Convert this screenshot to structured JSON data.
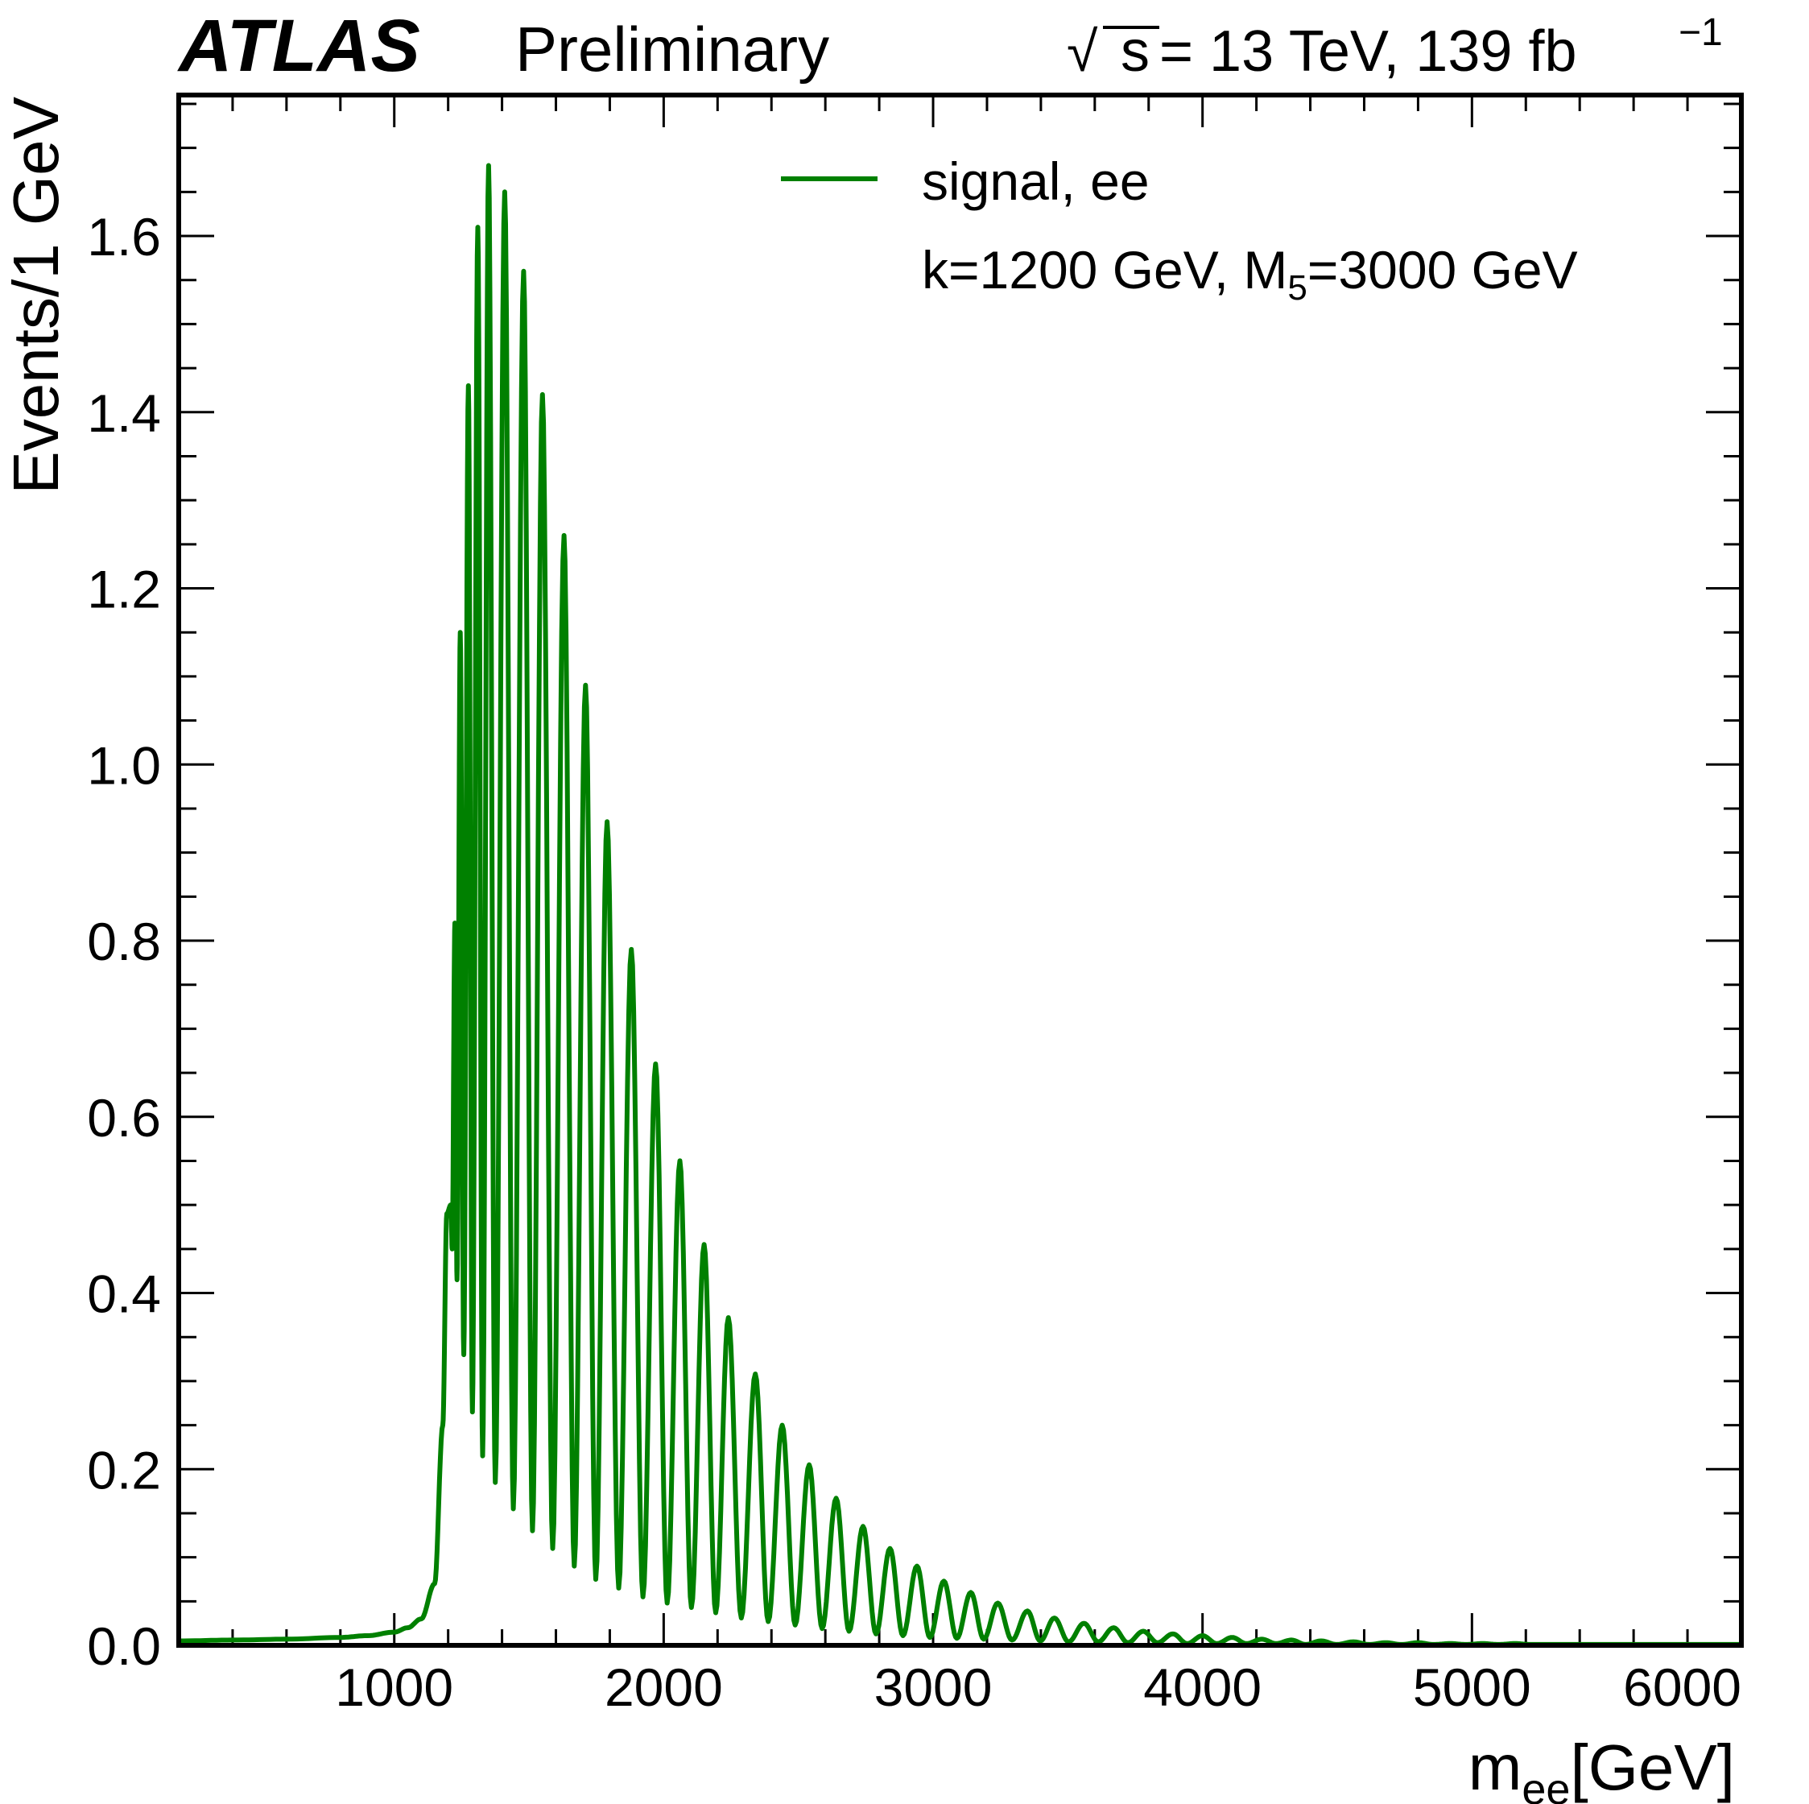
{
  "header": {
    "experiment": "ATLAS",
    "status": "Preliminary",
    "sqrt_symbol": "√",
    "energy_s": "s",
    "energy_rest": " = 13 TeV, 139 fb",
    "lumi_exponent": "−1"
  },
  "chart_data": {
    "type": "line",
    "xlabel_main": "m",
    "xlabel_sub": "ee",
    "xlabel_unit": "[GeV]",
    "ylabel": "Events/1 GeV",
    "xlim": [
      200,
      6000
    ],
    "ylim": [
      0,
      1.76
    ],
    "x_ticks": [
      1000,
      2000,
      3000,
      4000,
      5000,
      6000
    ],
    "x_tick_labels": [
      "1000",
      "2000",
      "3000",
      "4000",
      "5000",
      "6000"
    ],
    "y_ticks": [
      0.0,
      0.2,
      0.4,
      0.6,
      0.8,
      1.0,
      1.2,
      1.4,
      1.6
    ],
    "y_tick_labels": [
      "0.0",
      "0.2",
      "0.4",
      "0.6",
      "0.8",
      "1.0",
      "1.2",
      "1.4",
      "1.6"
    ],
    "legend": {
      "placement": "top-right",
      "entry": "signal, ee",
      "note_prefix": "k=1200 GeV, M",
      "note_sub": "5",
      "note_suffix": "=3000 GeV"
    },
    "series": [
      {
        "name": "signal, ee",
        "color": "#008000",
        "baseline": [
          [
            200,
            0.005
          ],
          [
            400,
            0.006
          ],
          [
            600,
            0.007
          ],
          [
            800,
            0.009
          ],
          [
            900,
            0.011
          ],
          [
            1000,
            0.015
          ],
          [
            1050,
            0.02
          ],
          [
            1100,
            0.03
          ],
          [
            1150,
            0.07
          ],
          [
            1180,
            0.25
          ],
          [
            1195,
            0.49
          ]
        ],
        "peaks": [
          [
            1210,
            0.5
          ],
          [
            1225,
            0.82
          ],
          [
            1245,
            1.15
          ],
          [
            1275,
            1.43
          ],
          [
            1310,
            1.61
          ],
          [
            1350,
            1.68
          ],
          [
            1410,
            1.65
          ],
          [
            1480,
            1.56
          ],
          [
            1550,
            1.42
          ],
          [
            1630,
            1.26
          ],
          [
            1710,
            1.09
          ],
          [
            1790,
            0.935
          ],
          [
            1880,
            0.79
          ],
          [
            1970,
            0.66
          ],
          [
            2060,
            0.55
          ],
          [
            2150,
            0.455
          ],
          [
            2240,
            0.372
          ],
          [
            2340,
            0.308
          ],
          [
            2440,
            0.25
          ],
          [
            2540,
            0.205
          ],
          [
            2640,
            0.167
          ],
          [
            2740,
            0.135
          ],
          [
            2840,
            0.11
          ],
          [
            2940,
            0.09
          ],
          [
            3040,
            0.073
          ],
          [
            3140,
            0.06
          ],
          [
            3240,
            0.048
          ],
          [
            3350,
            0.039
          ],
          [
            3450,
            0.031
          ],
          [
            3560,
            0.025
          ],
          [
            3670,
            0.02
          ],
          [
            3780,
            0.016
          ],
          [
            3890,
            0.013
          ],
          [
            4000,
            0.011
          ],
          [
            4110,
            0.009
          ],
          [
            4220,
            0.007
          ],
          [
            4330,
            0.006
          ],
          [
            4440,
            0.005
          ],
          [
            4560,
            0.004
          ],
          [
            4680,
            0.003
          ],
          [
            4800,
            0.003
          ],
          [
            4920,
            0.002
          ],
          [
            5040,
            0.002
          ],
          [
            5160,
            0.002
          ],
          [
            5280,
            0.001
          ],
          [
            5400,
            0.001
          ],
          [
            5520,
            0.001
          ],
          [
            5640,
            0.001
          ],
          [
            5760,
            0.001
          ],
          [
            5880,
            0.001
          ]
        ],
        "troughs": [
          [
            1215,
            0.45
          ],
          [
            1233,
            0.415
          ],
          [
            1258,
            0.33
          ],
          [
            1290,
            0.265
          ],
          [
            1328,
            0.215
          ],
          [
            1375,
            0.185
          ],
          [
            1442,
            0.155
          ],
          [
            1513,
            0.13
          ],
          [
            1588,
            0.11
          ],
          [
            1668,
            0.09
          ],
          [
            1748,
            0.075
          ],
          [
            1833,
            0.065
          ],
          [
            1923,
            0.055
          ],
          [
            2013,
            0.048
          ],
          [
            2103,
            0.043
          ],
          [
            2193,
            0.037
          ],
          [
            2288,
            0.031
          ],
          [
            2388,
            0.027
          ],
          [
            2488,
            0.023
          ],
          [
            2588,
            0.019
          ],
          [
            2688,
            0.016
          ],
          [
            2788,
            0.013
          ],
          [
            2888,
            0.011
          ],
          [
            2988,
            0.009
          ],
          [
            3088,
            0.008
          ],
          [
            3188,
            0.007
          ],
          [
            3293,
            0.006
          ],
          [
            3398,
            0.005
          ],
          [
            3503,
            0.004
          ],
          [
            3613,
            0.004
          ],
          [
            3723,
            0.003
          ],
          [
            3833,
            0.003
          ],
          [
            3943,
            0.002
          ],
          [
            4053,
            0.002
          ],
          [
            4163,
            0.002
          ],
          [
            4273,
            0.002
          ],
          [
            4383,
            0.001
          ],
          [
            4498,
            0.001
          ],
          [
            4618,
            0.001
          ],
          [
            4738,
            0.001
          ],
          [
            4858,
            0.001
          ],
          [
            4978,
            0.001
          ],
          [
            5098,
            0.001
          ],
          [
            5218,
            0.001
          ],
          [
            5338,
            0.001
          ],
          [
            5458,
            0.001
          ],
          [
            5578,
            0.001
          ],
          [
            5698,
            0.001
          ],
          [
            5818,
            0.001
          ],
          [
            5940,
            0.001
          ]
        ]
      }
    ]
  }
}
